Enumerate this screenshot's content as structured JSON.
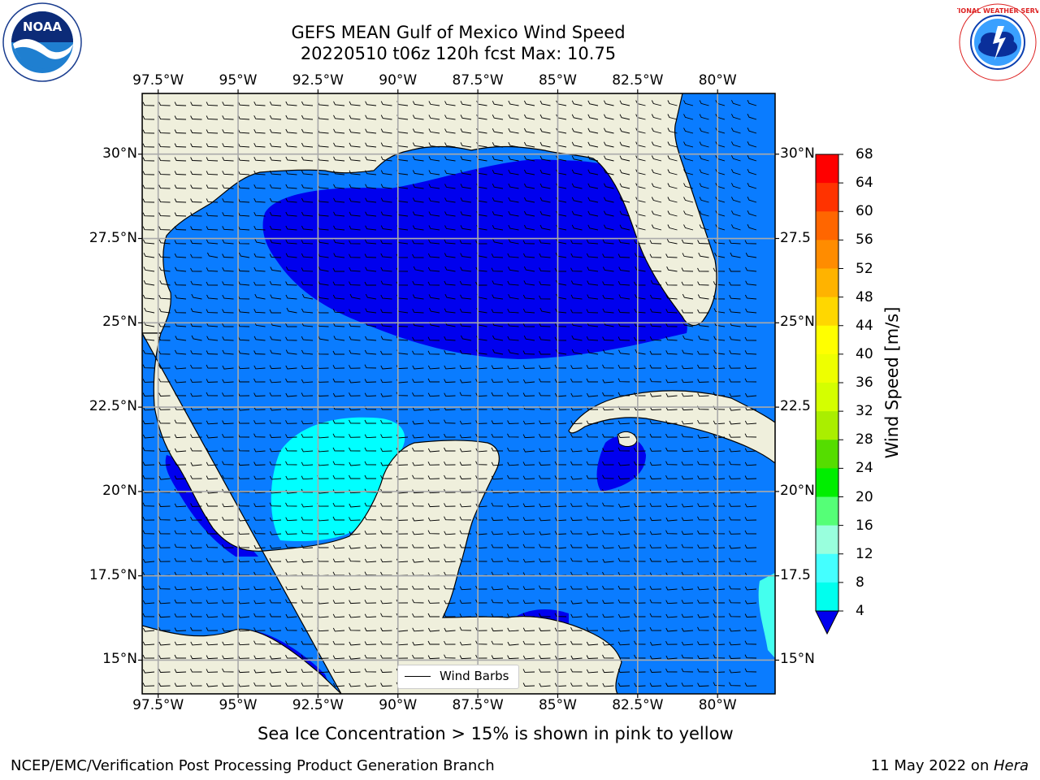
{
  "title": {
    "line1": "GEFS MEAN Gulf of Mexico Wind Speed",
    "line2": "20220510 t06z 120h fcst   Max: 10.75"
  },
  "map": {
    "lon_ticks": [
      "97.5°W",
      "95°W",
      "92.5°W",
      "90°W",
      "87.5°W",
      "85°W",
      "82.5°W",
      "80°W"
    ],
    "lat_ticks_left": [
      "30°N",
      "27.5°N",
      "25°N",
      "22.5°N",
      "20°N",
      "17.5°N",
      "15°N"
    ],
    "lat_ticks_right": [
      "30°N",
      "27.5",
      "25°N",
      "22.5",
      "20°N",
      "17.5",
      "15°N"
    ],
    "lon_values": [
      -97.5,
      -95,
      -92.5,
      -90,
      -87.5,
      -85,
      -82.5,
      -80
    ],
    "lat_values": [
      30,
      27.5,
      25,
      22.5,
      20,
      17.5,
      15
    ],
    "extent": {
      "lon_min": -98,
      "lon_max": -78.2,
      "lat_min": 14,
      "lat_max": 31.8
    },
    "gridlines": true,
    "land_color": "#efefdc",
    "legend_label": "Wind Barbs"
  },
  "colorbar": {
    "title": "Wind Speed [m/s]",
    "levels": [
      "68",
      "64",
      "60",
      "56",
      "52",
      "48",
      "44",
      "40",
      "36",
      "32",
      "28",
      "24",
      "20",
      "16",
      "12",
      "8",
      "4"
    ],
    "colors": [
      "#ff0000",
      "#ff3300",
      "#ff6600",
      "#ff8c00",
      "#ffb300",
      "#ffd700",
      "#ffff00",
      "#eeff00",
      "#d4ff00",
      "#aaee00",
      "#55dd00",
      "#00ee00",
      "#55ff77",
      "#99ffdd",
      "#44ffff",
      "#00ffee",
      "#0077ff"
    ],
    "under_color": "#0000ee"
  },
  "notes": {
    "sea_ice": "Sea Ice Concentration > 15% is shown in pink to yellow"
  },
  "footer": {
    "left": "NCEP/EMC/Verification Post Processing Product Generation Branch",
    "right_date": "11 May 2022 on ",
    "right_host": "Hera"
  },
  "logos": {
    "noaa_text": "NOAA",
    "nws_text": "NATIONAL WEATHER SERVICE"
  },
  "colors": {
    "wind_4_8": "#0a7cff",
    "wind_under_4": "#0000ee",
    "wind_8_12": "#00ffff",
    "wind_12_16": "#44ffee"
  }
}
